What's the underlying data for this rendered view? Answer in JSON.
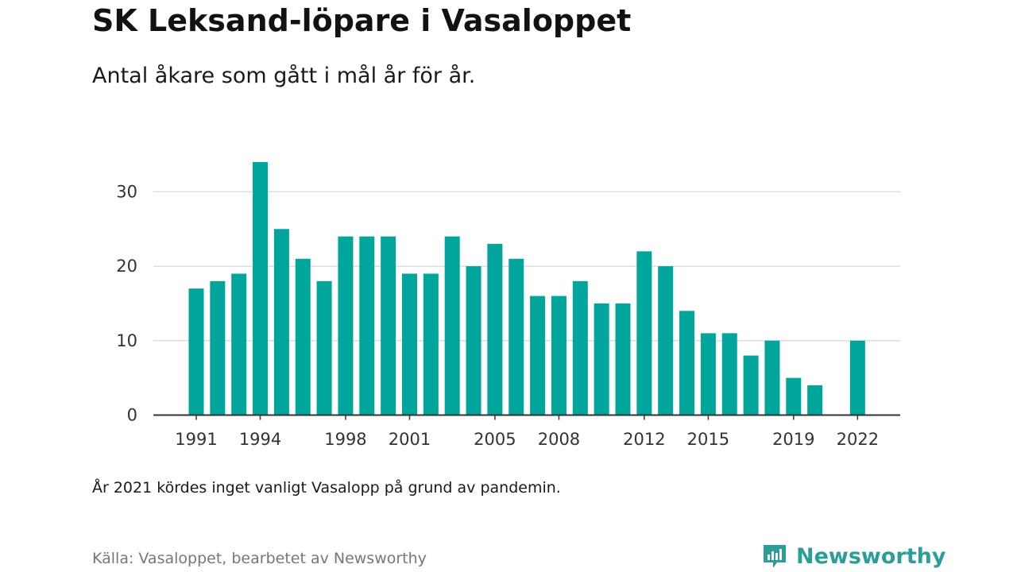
{
  "header": {
    "title": "SK Leksand-löpare i Vasaloppet",
    "subtitle": "Antal åkare som gått i mål år för år."
  },
  "footer": {
    "note": "År 2021 kördes inget vanligt Vasalopp på grund av pandemin.",
    "source": "Källa: Vasaloppet, bearbetet av Newsworthy",
    "brand": "Newsworthy",
    "brand_icon": "bar-chart-speech-bubble-icon"
  },
  "colors": {
    "bar": "#00A59B",
    "brand": "#2B9E99",
    "grid": "#DDDDDD",
    "axis": "#333333"
  },
  "chart_data": {
    "type": "bar",
    "title": "SK Leksand-löpare i Vasaloppet",
    "subtitle": "Antal åkare som gått i mål år för år.",
    "xlabel": "",
    "ylabel": "",
    "categories": [
      1991,
      1992,
      1993,
      1994,
      1995,
      1996,
      1997,
      1998,
      1999,
      2000,
      2001,
      2002,
      2003,
      2004,
      2005,
      2006,
      2007,
      2008,
      2009,
      2010,
      2011,
      2012,
      2013,
      2014,
      2015,
      2016,
      2017,
      2018,
      2019,
      2020,
      2021,
      2022
    ],
    "values": [
      17,
      18,
      19,
      34,
      25,
      21,
      18,
      24,
      24,
      24,
      19,
      19,
      24,
      20,
      23,
      21,
      16,
      16,
      18,
      15,
      15,
      22,
      20,
      14,
      11,
      11,
      8,
      10,
      5,
      4,
      null,
      10
    ],
    "x_tick_labels": [
      "1991",
      "1994",
      "1998",
      "2001",
      "2005",
      "2008",
      "2012",
      "2015",
      "2019",
      "2022"
    ],
    "y_ticks": [
      0,
      10,
      20,
      30
    ],
    "ylim": [
      0,
      35
    ],
    "grid": "horizontal",
    "legend": "none"
  }
}
